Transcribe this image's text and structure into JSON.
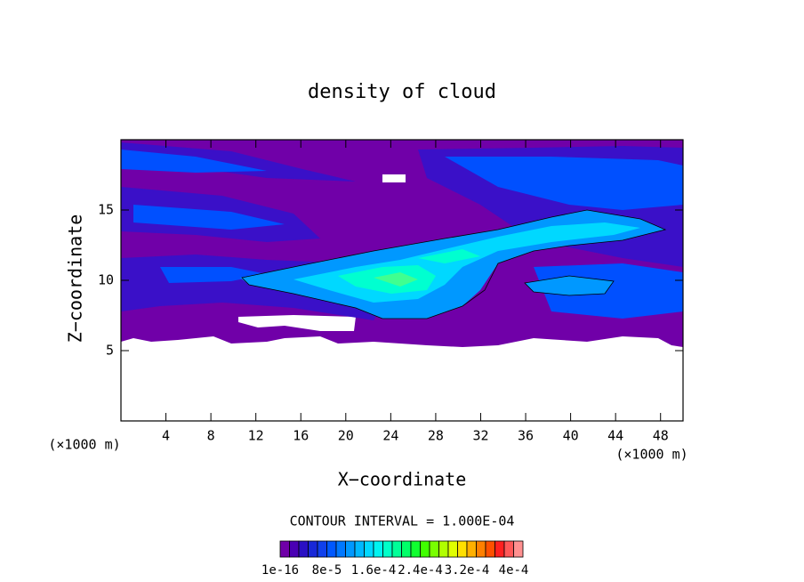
{
  "chart_data": {
    "type": "contour",
    "title": "density of cloud",
    "x_label": "X−coordinate",
    "y_label": "Z−coordinate",
    "x_unit": "(×1000 m)",
    "y_unit": "(×1000 m)",
    "xlim": [
      0,
      50
    ],
    "xticks": [
      4,
      8,
      12,
      16,
      20,
      24,
      28,
      32,
      36,
      40,
      44,
      48
    ],
    "ylim": [
      0,
      20
    ],
    "yticks": [
      5,
      10,
      15
    ],
    "contour_interval": "CONTOUR INTERVAL = 1.000E-04",
    "colorbar": {
      "clim": [
        0,
        0.000416
      ],
      "colors": [
        "#7000a8",
        "#4a00b4",
        "#2a10c4",
        "#1828d8",
        "#1040ec",
        "#0058ff",
        "#0078ff",
        "#0098ff",
        "#00b8ff",
        "#00d8ff",
        "#00f4f0",
        "#00ffc8",
        "#00ff98",
        "#00ff68",
        "#10ff30",
        "#40ff00",
        "#78ff00",
        "#b0ff00",
        "#e0ff00",
        "#ffe000",
        "#ffb000",
        "#ff8000",
        "#ff5000",
        "#ff2020",
        "#ff5858",
        "#ff9090"
      ],
      "ticks": [
        {
          "value": 1e-16,
          "label": "1e-16"
        },
        {
          "value": 8e-05,
          "label": "8e-5"
        },
        {
          "value": 0.00016,
          "label": "1.6e-4"
        },
        {
          "value": 0.00024,
          "label": "2.4e-4"
        },
        {
          "value": 0.00032,
          "label": "3.2e-4"
        },
        {
          "value": 0.0004,
          "label": "4e-4"
        }
      ]
    }
  }
}
